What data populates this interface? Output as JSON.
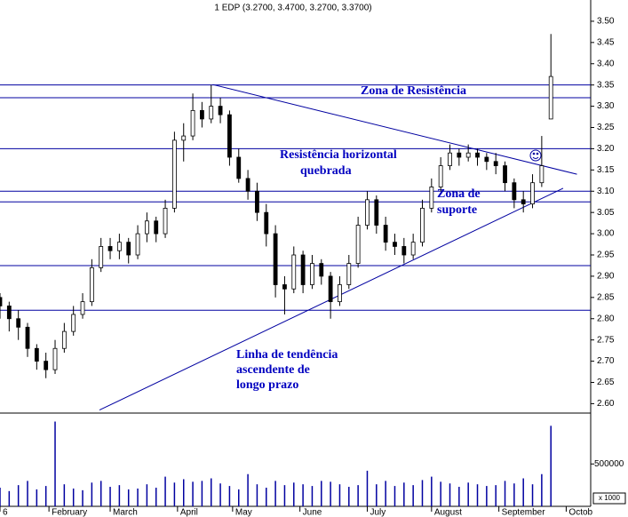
{
  "chart_data": {
    "type": "candlestick",
    "title": "1 EDP (3.2700, 3.4700, 3.2700, 3.3700)",
    "x": [
      0,
      3,
      6,
      9,
      12,
      15,
      18,
      21,
      24,
      27,
      30,
      33,
      36,
      39,
      42,
      45,
      48,
      51,
      54,
      57,
      60,
      63,
      66,
      69,
      72,
      75,
      78,
      81,
      84,
      87,
      90,
      93,
      96,
      99,
      102,
      105,
      108,
      111,
      114,
      117,
      120,
      123,
      126,
      129,
      132,
      135,
      138,
      141,
      144,
      147,
      150,
      153,
      156,
      159,
      162,
      165,
      168,
      171,
      174,
      177,
      180
    ],
    "open": [
      2.85,
      2.83,
      2.8,
      2.78,
      2.73,
      2.7,
      2.68,
      2.73,
      2.77,
      2.81,
      2.84,
      2.92,
      2.97,
      2.96,
      2.98,
      2.95,
      3.0,
      3.03,
      3.0,
      3.06,
      3.22,
      3.23,
      3.29,
      3.27,
      3.3,
      3.28,
      3.18,
      3.13,
      3.1,
      3.05,
      3.0,
      2.88,
      2.87,
      2.95,
      2.88,
      2.93,
      2.9,
      2.84,
      2.88,
      2.93,
      3.02,
      3.08,
      3.02,
      2.98,
      2.97,
      2.95,
      2.98,
      3.06,
      3.11,
      3.16,
      3.19,
      3.18,
      3.19,
      3.18,
      3.17,
      3.16,
      3.12,
      3.08,
      3.07,
      3.12,
      3.27
    ],
    "high": [
      2.86,
      2.84,
      2.82,
      2.79,
      2.74,
      2.72,
      2.75,
      2.79,
      2.83,
      2.86,
      2.94,
      2.99,
      2.99,
      3.0,
      2.99,
      3.02,
      3.05,
      3.04,
      3.08,
      3.24,
      3.26,
      3.33,
      3.31,
      3.35,
      3.32,
      3.29,
      3.2,
      3.15,
      3.12,
      3.07,
      3.02,
      2.9,
      2.97,
      2.96,
      2.95,
      2.94,
      2.91,
      2.9,
      2.95,
      3.04,
      3.1,
      3.09,
      3.04,
      3.0,
      2.99,
      3.0,
      3.08,
      3.13,
      3.18,
      3.21,
      3.2,
      3.21,
      3.2,
      3.19,
      3.19,
      3.17,
      3.13,
      3.1,
      3.14,
      3.23,
      3.47
    ],
    "low": [
      2.8,
      2.77,
      2.75,
      2.71,
      2.68,
      2.66,
      2.67,
      2.72,
      2.76,
      2.8,
      2.83,
      2.91,
      2.94,
      2.94,
      2.93,
      2.94,
      2.98,
      2.98,
      2.99,
      3.05,
      3.17,
      3.22,
      3.25,
      3.26,
      3.26,
      3.16,
      3.12,
      3.08,
      3.03,
      2.97,
      2.85,
      2.81,
      2.86,
      2.86,
      2.87,
      2.88,
      2.8,
      2.83,
      2.87,
      2.92,
      3.01,
      3.0,
      2.96,
      2.95,
      2.93,
      2.94,
      2.97,
      3.05,
      3.1,
      3.15,
      3.16,
      3.17,
      3.16,
      3.15,
      3.14,
      3.1,
      3.06,
      3.05,
      3.06,
      3.11,
      3.27
    ],
    "close": [
      2.83,
      2.8,
      2.78,
      2.73,
      2.7,
      2.68,
      2.73,
      2.77,
      2.81,
      2.84,
      2.92,
      2.97,
      2.96,
      2.98,
      2.95,
      3.0,
      3.03,
      3.0,
      3.06,
      3.22,
      3.23,
      3.29,
      3.27,
      3.3,
      3.28,
      3.18,
      3.13,
      3.1,
      3.05,
      3.0,
      2.88,
      2.87,
      2.95,
      2.88,
      2.93,
      2.9,
      2.84,
      2.88,
      2.93,
      3.02,
      3.08,
      3.02,
      2.98,
      2.97,
      2.95,
      2.98,
      3.06,
      3.11,
      3.16,
      3.19,
      3.18,
      3.19,
      3.18,
      3.17,
      3.16,
      3.12,
      3.08,
      3.07,
      3.12,
      3.16,
      3.37
    ],
    "volume": [
      220000,
      180000,
      250000,
      300000,
      200000,
      240000,
      1000000,
      260000,
      210000,
      190000,
      280000,
      300000,
      230000,
      250000,
      200000,
      210000,
      260000,
      220000,
      350000,
      280000,
      320000,
      290000,
      300000,
      330000,
      270000,
      240000,
      200000,
      380000,
      260000,
      220000,
      300000,
      250000,
      280000,
      260000,
      240000,
      300000,
      290000,
      260000,
      230000,
      250000,
      420000,
      260000,
      300000,
      240000,
      280000,
      250000,
      310000,
      350000,
      290000,
      270000,
      230000,
      280000,
      260000,
      240000,
      250000,
      300000,
      270000,
      330000,
      260000,
      380000,
      950000
    ],
    "xlim": [
      0,
      193
    ],
    "xticks": [
      {
        "value": 0,
        "label": "6"
      },
      {
        "value": 16,
        "label": "February"
      },
      {
        "value": 36,
        "label": "March"
      },
      {
        "value": 58,
        "label": "April"
      },
      {
        "value": 76,
        "label": "May"
      },
      {
        "value": 98,
        "label": "June"
      },
      {
        "value": 120,
        "label": "July"
      },
      {
        "value": 141,
        "label": "August"
      },
      {
        "value": 163,
        "label": "September"
      },
      {
        "value": 185,
        "label": "Octob"
      }
    ],
    "ylim": [
      2.58,
      3.55
    ],
    "yticks": [
      {
        "value": 2.6,
        "label": "2.60"
      },
      {
        "value": 2.65,
        "label": "2.65"
      },
      {
        "value": 2.7,
        "label": "2.70"
      },
      {
        "value": 2.75,
        "label": "2.75"
      },
      {
        "value": 2.8,
        "label": "2.80"
      },
      {
        "value": 2.85,
        "label": "2.85"
      },
      {
        "value": 2.9,
        "label": "2.90"
      },
      {
        "value": 2.95,
        "label": "2.95"
      },
      {
        "value": 3.0,
        "label": "3.00"
      },
      {
        "value": 3.05,
        "label": "3.05"
      },
      {
        "value": 3.1,
        "label": "3.10"
      },
      {
        "value": 3.15,
        "label": "3.15"
      },
      {
        "value": 3.2,
        "label": "3.20"
      },
      {
        "value": 3.25,
        "label": "3.25"
      },
      {
        "value": 3.3,
        "label": "3.30"
      },
      {
        "value": 3.35,
        "label": "3.35"
      },
      {
        "value": 3.4,
        "label": "3.40"
      },
      {
        "value": 3.45,
        "label": "3.45"
      },
      {
        "value": 3.5,
        "label": "3.50"
      }
    ],
    "volume_ylim": [
      0,
      1100000
    ],
    "volume_yticks": [
      500000
    ],
    "volume_unit_label": "x 1000",
    "levels": [
      3.35,
      3.32,
      3.2,
      3.1,
      3.075,
      2.925,
      2.82
    ],
    "trendlines": [
      {
        "x": [
          69.5,
          188.5
        ],
        "y": [
          3.351,
          3.14
        ]
      },
      {
        "x": [
          32.5,
          184
        ],
        "y": [
          2.585,
          3.107
        ]
      }
    ],
    "line_color": "#0000a0",
    "annotations": [
      "Zona de Resistência",
      "Resistência horizontal",
      "quebrada",
      "Zona de",
      "suporte",
      "Linha de tendência",
      "ascendente de",
      "longo prazo"
    ]
  }
}
